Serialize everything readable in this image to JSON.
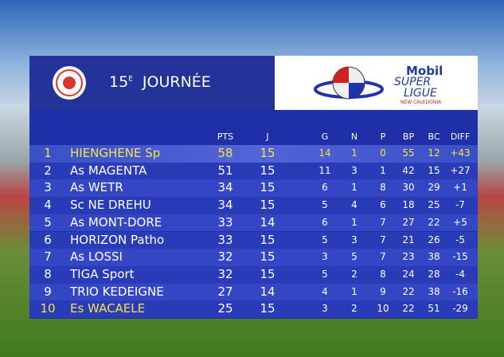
{
  "header": {
    "title_number": "15",
    "title_suffix": "E",
    "title_word": "JOURNÉE",
    "sponsor": "Mobil",
    "league_top": "SUPER",
    "league_bottom": "LIGUE",
    "region": "NEW CALEDONIA"
  },
  "table": {
    "columns": [
      "PTS",
      "J",
      "G",
      "N",
      "P",
      "BP",
      "BC",
      "DIFF"
    ],
    "rows": [
      [
        1,
        "HIENGHENE Sp",
        58,
        15,
        14,
        1,
        0,
        55,
        12,
        "+43"
      ],
      [
        2,
        "As MAGENTA",
        51,
        15,
        11,
        3,
        1,
        42,
        15,
        "+27"
      ],
      [
        3,
        "As WETR",
        34,
        15,
        6,
        1,
        8,
        30,
        29,
        "+1"
      ],
      [
        4,
        "Sc NE DREHU",
        34,
        15,
        5,
        4,
        6,
        18,
        25,
        "-7"
      ],
      [
        5,
        "As MONT-DORE",
        33,
        14,
        6,
        1,
        7,
        27,
        22,
        "+5"
      ],
      [
        6,
        "HORIZON Patho",
        33,
        15,
        5,
        3,
        7,
        21,
        26,
        "-5"
      ],
      [
        7,
        "As LOSSI",
        32,
        15,
        3,
        5,
        7,
        23,
        38,
        "-15"
      ],
      [
        8,
        "TIGA Sport",
        32,
        15,
        5,
        2,
        8,
        24,
        28,
        "-4"
      ],
      [
        9,
        "TRIO KEDEIGNE",
        27,
        14,
        4,
        1,
        9,
        22,
        38,
        "-16"
      ],
      [
        10,
        "Es WACAELE",
        25,
        15,
        3,
        2,
        10,
        22,
        51,
        "-29"
      ]
    ]
  }
}
